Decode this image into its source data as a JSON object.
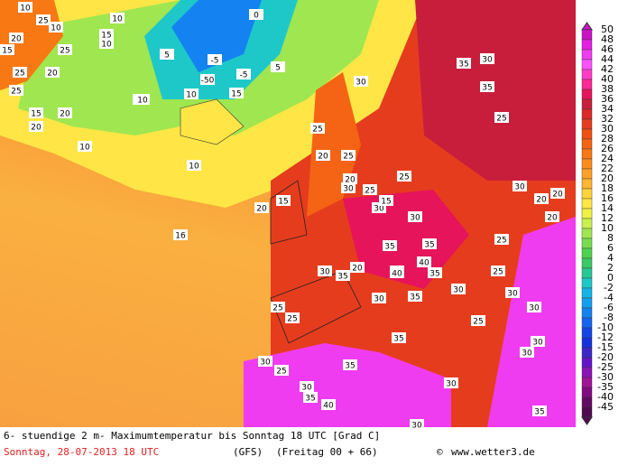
{
  "map": {
    "labels": [
      "10",
      "25",
      "10",
      "20",
      "15",
      "25",
      "10",
      "15",
      "10",
      "0",
      "5",
      "-5",
      "-5",
      "-50",
      "15",
      "10",
      "5",
      "25",
      "20",
      "10",
      "15",
      "20",
      "20",
      "25",
      "10",
      "10",
      "10",
      "16",
      "15",
      "20",
      "25",
      "30",
      "20",
      "25",
      "20",
      "30",
      "25",
      "30",
      "25",
      "30",
      "25",
      "20",
      "15",
      "25",
      "20",
      "30",
      "35",
      "30",
      "35",
      "25",
      "40",
      "30",
      "35",
      "30",
      "25",
      "30",
      "35",
      "25",
      "30",
      "30",
      "35",
      "40",
      "30",
      "25",
      "35",
      "35",
      "30",
      "40",
      "35",
      "35",
      "30",
      "30",
      "35",
      "30",
      "25",
      "20",
      "25",
      "20",
      "30",
      "35"
    ]
  },
  "legend": {
    "labels": [
      "50",
      "48",
      "46",
      "44",
      "42",
      "40",
      "38",
      "36",
      "34",
      "32",
      "30",
      "28",
      "26",
      "24",
      "22",
      "20",
      "18",
      "16",
      "14",
      "12",
      "10",
      "8",
      "6",
      "4",
      "2",
      "0",
      "-2",
      "-4",
      "-6",
      "-8",
      "-10",
      "-12",
      "-15",
      "-20",
      "-25",
      "-30",
      "-35",
      "-40",
      "-45"
    ],
    "colors": [
      "#c814c8",
      "#e61ee6",
      "#f03cf0",
      "#ff50ff",
      "#ff3cc8",
      "#ff2896",
      "#e6145a",
      "#c81e3c",
      "#dc2828",
      "#e63c1e",
      "#f05014",
      "#f46414",
      "#f87814",
      "#fa8c1e",
      "#fca028",
      "#ffb432",
      "#ffd23c",
      "#ffe646",
      "#f0f046",
      "#c8f050",
      "#a0e650",
      "#78dc50",
      "#50d250",
      "#3cc864",
      "#28c896",
      "#1ec8c8",
      "#14b4e6",
      "#14a0f0",
      "#1482f0",
      "#1464f0",
      "#1446e6",
      "#1432dc",
      "#3c28c8",
      "#6414c8",
      "#8c14b4",
      "#a01496",
      "#820a82",
      "#640a64",
      "#500a50"
    ]
  },
  "footer": {
    "title": "6- stuendige 2 m- Maximumtemperatur bis Sonntag 18 UTC [Grad C]",
    "date": "Sonntag, 28-07-2013  18 UTC",
    "model": "(GFS)",
    "run": "(Freitag 00 + 66)",
    "copyright": "©",
    "site": "www.wetter3.de"
  }
}
